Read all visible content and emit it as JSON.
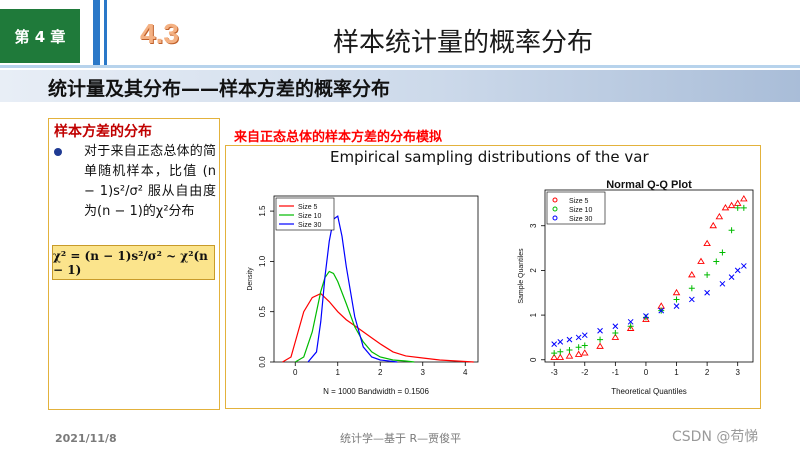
{
  "header": {
    "chapter": "第 4 章",
    "section_number": "4.3",
    "title": "样本统计量的概率分布",
    "subtitle": "统计量及其分布——样本方差的概率分布"
  },
  "left": {
    "heading": "样本方差的分布",
    "text": "对于来自正态总体的简单随机样本，比值 (n − 1)s²/σ² 服从自由度为(n − 1)的χ²分布",
    "formula": "χ² = (n − 1)s²/σ² ~ χ²(n − 1)"
  },
  "right": {
    "heading": "来自正态总体的样本方差的分布模拟"
  },
  "footer": {
    "date": "2021/11/8",
    "center": "统计学—基于 R—贾俊平",
    "right": "CSDN @苟悌"
  },
  "colors": {
    "size5": "#ff0000",
    "size10": "#00bb00",
    "size30": "#0000ff"
  },
  "chart_data": [
    {
      "type": "line",
      "title": "Empirical sampling distributions of the var",
      "xlabel": "N = 1000   Bandwidth = 0.1506",
      "ylabel": "Density",
      "xlim": [
        -0.5,
        4.3
      ],
      "ylim": [
        0,
        1.65
      ],
      "xticks": [
        0,
        1,
        2,
        3,
        4
      ],
      "yticks": [
        0.0,
        0.5,
        1.0,
        1.5
      ],
      "legend": "top-left",
      "series": [
        {
          "name": "Size 5",
          "color": "#ff0000",
          "x": [
            -0.3,
            -0.1,
            0.0,
            0.2,
            0.4,
            0.6,
            0.8,
            1.0,
            1.2,
            1.5,
            1.8,
            2.0,
            2.3,
            2.6,
            3.0,
            3.4,
            3.8,
            4.2
          ],
          "y": [
            0.0,
            0.05,
            0.2,
            0.5,
            0.64,
            0.68,
            0.6,
            0.5,
            0.42,
            0.33,
            0.24,
            0.18,
            0.1,
            0.06,
            0.04,
            0.02,
            0.01,
            0.0
          ]
        },
        {
          "name": "Size 10",
          "color": "#00bb00",
          "x": [
            0.0,
            0.2,
            0.4,
            0.6,
            0.7,
            0.8,
            0.9,
            1.0,
            1.2,
            1.4,
            1.6,
            1.8,
            2.0,
            2.3,
            2.6,
            2.8
          ],
          "y": [
            0.0,
            0.05,
            0.3,
            0.7,
            0.84,
            0.9,
            0.88,
            0.8,
            0.58,
            0.35,
            0.2,
            0.1,
            0.05,
            0.02,
            0.01,
            0.0
          ]
        },
        {
          "name": "Size 30",
          "color": "#0000ff",
          "x": [
            0.3,
            0.5,
            0.6,
            0.7,
            0.8,
            0.9,
            1.0,
            1.1,
            1.2,
            1.3,
            1.4,
            1.5,
            1.6,
            1.8,
            2.0,
            2.2,
            2.4
          ],
          "y": [
            0.0,
            0.1,
            0.4,
            0.85,
            1.2,
            1.42,
            1.45,
            1.25,
            0.95,
            0.7,
            0.45,
            0.3,
            0.15,
            0.05,
            0.02,
            0.01,
            0.0
          ]
        }
      ]
    },
    {
      "type": "scatter",
      "title": "Normal Q-Q Plot",
      "xlabel": "Theoretical Quantiles",
      "ylabel": "Sample Quantiles",
      "xlim": [
        -3.3,
        3.5
      ],
      "ylim": [
        -0.05,
        3.8
      ],
      "xticks": [
        -3,
        -2,
        -1,
        0,
        1,
        2,
        3
      ],
      "yticks": [
        0,
        1,
        2,
        3
      ],
      "legend": "top-left",
      "series": [
        {
          "name": "Size 5",
          "color": "#ff0000",
          "marker": "triangle",
          "x": [
            -3.0,
            -2.8,
            -2.5,
            -2.2,
            -2.0,
            -1.5,
            -1.0,
            -0.5,
            0.0,
            0.5,
            1.0,
            1.5,
            1.8,
            2.0,
            2.2,
            2.4,
            2.6,
            2.8,
            3.0,
            3.2
          ],
          "y": [
            0.05,
            0.05,
            0.08,
            0.12,
            0.15,
            0.3,
            0.5,
            0.7,
            0.9,
            1.2,
            1.5,
            1.9,
            2.2,
            2.6,
            3.0,
            3.2,
            3.4,
            3.45,
            3.5,
            3.6
          ]
        },
        {
          "name": "Size 10",
          "color": "#00bb00",
          "marker": "plus",
          "x": [
            -3.0,
            -2.8,
            -2.5,
            -2.2,
            -2.0,
            -1.5,
            -1.0,
            -0.5,
            0.0,
            0.5,
            1.0,
            1.5,
            2.0,
            2.3,
            2.5,
            2.8,
            3.0,
            3.2
          ],
          "y": [
            0.15,
            0.18,
            0.22,
            0.28,
            0.32,
            0.45,
            0.6,
            0.75,
            0.95,
            1.1,
            1.35,
            1.6,
            1.9,
            2.2,
            2.4,
            2.9,
            3.4,
            3.4
          ]
        },
        {
          "name": "Size 30",
          "color": "#0000ff",
          "marker": "cross",
          "x": [
            -3.0,
            -2.8,
            -2.5,
            -2.2,
            -2.0,
            -1.5,
            -1.0,
            -0.5,
            0.0,
            0.5,
            1.0,
            1.5,
            2.0,
            2.5,
            2.8,
            3.0,
            3.2
          ],
          "y": [
            0.35,
            0.4,
            0.45,
            0.5,
            0.55,
            0.65,
            0.75,
            0.85,
            0.98,
            1.1,
            1.2,
            1.35,
            1.5,
            1.7,
            1.85,
            2.0,
            2.1
          ]
        }
      ]
    }
  ]
}
